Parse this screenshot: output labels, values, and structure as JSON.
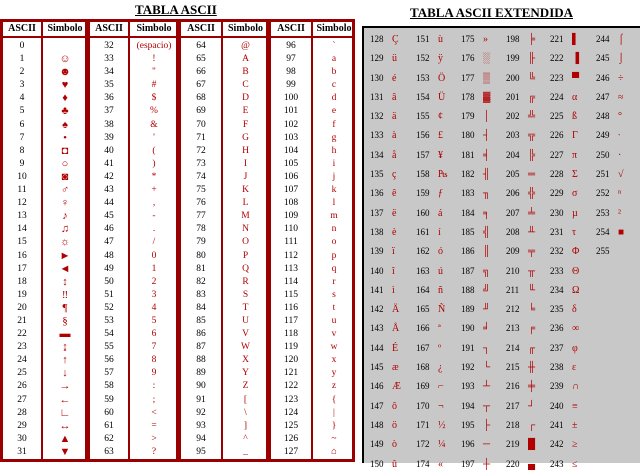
{
  "left_title": "TABLA ASCII",
  "right_title": "TABLA ASCII EXTENDIDA",
  "headers": {
    "ascii": "ASCII",
    "simbolo": "Simbolo"
  },
  "left_groups": [
    {
      "codes": [
        "0",
        "1",
        "2",
        "3",
        "4",
        "5",
        "6",
        "7",
        "8",
        "9",
        "10",
        "11",
        "12",
        "13",
        "14",
        "15",
        "16",
        "17",
        "18",
        "19",
        "20",
        "21",
        "22",
        "23",
        "24",
        "25",
        "26",
        "27",
        "28",
        "29",
        "30",
        "31"
      ],
      "symbols": [
        "",
        "☺",
        "☻",
        "♥",
        "♦",
        "♣",
        "♠",
        "•",
        "◘",
        "○",
        "◙",
        "♂",
        "♀",
        "♪",
        "♫",
        "☼",
        "►",
        "◄",
        "↕",
        "‼",
        "¶",
        "§",
        "▬",
        "↨",
        "↑",
        "↓",
        "→",
        "←",
        "∟",
        "↔",
        "▲",
        "▼"
      ]
    },
    {
      "codes": [
        "32",
        "33",
        "34",
        "35",
        "36",
        "37",
        "38",
        "39",
        "40",
        "41",
        "42",
        "43",
        "44",
        "45",
        "46",
        "47",
        "48",
        "49",
        "50",
        "51",
        "52",
        "53",
        "54",
        "55",
        "56",
        "57",
        "58",
        "59",
        "60",
        "61",
        "62",
        "63"
      ],
      "symbols": [
        "(espacio)",
        "!",
        "\"",
        "#",
        "$",
        "%",
        "&",
        "'",
        "(",
        ")",
        "*",
        "+",
        ",",
        "-",
        ".",
        "/",
        "0",
        "1",
        "2",
        "3",
        "4",
        "5",
        "6",
        "7",
        "8",
        "9",
        ":",
        ";",
        "<",
        "=",
        ">",
        "?"
      ]
    },
    {
      "codes": [
        "64",
        "65",
        "66",
        "67",
        "68",
        "69",
        "70",
        "71",
        "72",
        "73",
        "74",
        "75",
        "76",
        "77",
        "78",
        "79",
        "80",
        "81",
        "82",
        "83",
        "84",
        "85",
        "86",
        "87",
        "88",
        "89",
        "90",
        "91",
        "92",
        "93",
        "94",
        "95"
      ],
      "symbols": [
        "@",
        "A",
        "B",
        "C",
        "D",
        "E",
        "F",
        "G",
        "H",
        "I",
        "J",
        "K",
        "L",
        "M",
        "N",
        "O",
        "P",
        "Q",
        "R",
        "S",
        "T",
        "U",
        "V",
        "W",
        "X",
        "Y",
        "Z",
        "[",
        "\\",
        "]",
        "^",
        "_"
      ]
    },
    {
      "codes": [
        "96",
        "97",
        "98",
        "99",
        "100",
        "101",
        "102",
        "103",
        "104",
        "105",
        "106",
        "107",
        "108",
        "109",
        "110",
        "111",
        "112",
        "113",
        "114",
        "115",
        "116",
        "117",
        "118",
        "119",
        "120",
        "121",
        "122",
        "123",
        "124",
        "125",
        "126",
        "127"
      ],
      "symbols": [
        "`",
        "a",
        "b",
        "c",
        "d",
        "e",
        "f",
        "g",
        "h",
        "i",
        "j",
        "k",
        "l",
        "m",
        "n",
        "o",
        "p",
        "q",
        "r",
        "s",
        "t",
        "u",
        "v",
        "w",
        "x",
        "y",
        "z",
        "{",
        "|",
        "}",
        "~",
        "⌂"
      ]
    }
  ],
  "right_columns": [
    {
      "codes": [
        "128",
        "129",
        "130",
        "131",
        "132",
        "133",
        "134",
        "135",
        "136",
        "137",
        "138",
        "139",
        "140",
        "141",
        "142",
        "143",
        "144",
        "145",
        "146",
        "147",
        "148",
        "149",
        "150"
      ],
      "symbols": [
        "Ç",
        "ü",
        "é",
        "â",
        "ä",
        "à",
        "å",
        "ç",
        "ê",
        "ë",
        "è",
        "ï",
        "î",
        "ì",
        "Ä",
        "Å",
        "É",
        "æ",
        "Æ",
        "ô",
        "ö",
        "ò",
        "û"
      ]
    },
    {
      "codes": [
        "151",
        "152",
        "153",
        "154",
        "155",
        "156",
        "157",
        "158",
        "159",
        "160",
        "161",
        "162",
        "163",
        "164",
        "165",
        "166",
        "167",
        "168",
        "169",
        "170",
        "171",
        "172",
        "174"
      ],
      "symbols": [
        "ù",
        "ÿ",
        "Ö",
        "Ü",
        "¢",
        "£",
        "¥",
        "₧",
        "ƒ",
        "á",
        "í",
        "ó",
        "ú",
        "ñ",
        "Ñ",
        "ª",
        "º",
        "¿",
        "⌐",
        "¬",
        "½",
        "¼",
        "«"
      ]
    },
    {
      "codes": [
        "175",
        "176",
        "177",
        "178",
        "179",
        "180",
        "181",
        "182",
        "183",
        "184",
        "185",
        "186",
        "187",
        "188",
        "189",
        "190",
        "191",
        "192",
        "193",
        "194",
        "195",
        "196",
        "197"
      ],
      "symbols": [
        "»",
        "░",
        "▒",
        "▓",
        "│",
        "┤",
        "╡",
        "╢",
        "╖",
        "╕",
        "╣",
        "║",
        "╗",
        "╝",
        "╜",
        "╛",
        "┐",
        "└",
        "┴",
        "┬",
        "├",
        "─",
        "┼"
      ]
    },
    {
      "codes": [
        "198",
        "199",
        "200",
        "201",
        "202",
        "203",
        "204",
        "205",
        "206",
        "207",
        "208",
        "209",
        "210",
        "211",
        "212",
        "213",
        "214",
        "215",
        "216",
        "217",
        "218",
        "219",
        "220"
      ],
      "symbols": [
        "╞",
        "╟",
        "╚",
        "╔",
        "╩",
        "╦",
        "╠",
        "═",
        "╬",
        "╧",
        "╨",
        "╤",
        "╥",
        "╙",
        "╘",
        "╒",
        "╓",
        "╫",
        "╪",
        "┘",
        "┌",
        "█",
        "▄"
      ]
    },
    {
      "codes": [
        "221",
        "222",
        "223",
        "224",
        "225",
        "226",
        "227",
        "228",
        "229",
        "230",
        "231",
        "232",
        "233",
        "234",
        "235",
        "236",
        "237",
        "238",
        "239",
        "240",
        "241",
        "242",
        "243"
      ],
      "symbols": [
        "▌",
        "▐",
        "▀",
        "α",
        "ß",
        "Γ",
        "π",
        "Σ",
        "σ",
        "µ",
        "τ",
        "Φ",
        "Θ",
        "Ω",
        "δ",
        "∞",
        "φ",
        "ε",
        "∩",
        "≡",
        "±",
        "≥",
        "≤"
      ]
    },
    {
      "codes": [
        "244",
        "245",
        "246",
        "247",
        "248",
        "249",
        "250",
        "251",
        "252",
        "253",
        "254",
        "255"
      ],
      "symbols": [
        "⌠",
        "⌡",
        "÷",
        "≈",
        "°",
        "∙",
        "·",
        "√",
        "ⁿ",
        "²",
        "■",
        ""
      ]
    }
  ]
}
